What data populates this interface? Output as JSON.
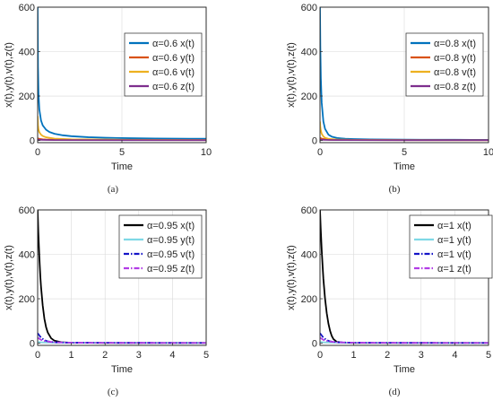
{
  "chart_data": [
    {
      "type": "line",
      "panel": "a",
      "caption": "(a)",
      "xlabel": "Time",
      "ylabel": "x(t),y(t),v(t),z(t)",
      "xlim": [
        0,
        10
      ],
      "ylim": [
        -10,
        600
      ],
      "xticks": [
        0,
        5,
        10
      ],
      "yticks": [
        0,
        200,
        400,
        600
      ],
      "grid": true,
      "legend_position": "top-right",
      "series": [
        {
          "name": "α=0.6 x(t)",
          "color": "#0072BD",
          "dash": "solid",
          "x": [
            0,
            0.02,
            0.05,
            0.1,
            0.2,
            0.3,
            0.5,
            0.7,
            1,
            1.5,
            2,
            3,
            4,
            5,
            6,
            7,
            8,
            9,
            10
          ],
          "y": [
            600,
            330,
            210,
            140,
            90,
            68,
            48,
            38,
            30,
            23,
            19,
            14.5,
            12,
            10.5,
            9.5,
            8.8,
            8.3,
            7.8,
            7.5
          ]
        },
        {
          "name": "α=0.6 y(t)",
          "color": "#D95319",
          "dash": "solid",
          "x": [
            0,
            0.1,
            0.3,
            0.5,
            1,
            2,
            5,
            10
          ],
          "y": [
            10,
            7,
            5,
            4,
            3,
            2,
            1.5,
            1
          ]
        },
        {
          "name": "α=0.6 v(t)",
          "color": "#EDB120",
          "dash": "solid",
          "x": [
            0,
            0.02,
            0.05,
            0.1,
            0.2,
            0.3,
            0.5,
            1,
            2,
            5,
            10
          ],
          "y": [
            110,
            70,
            50,
            37,
            26,
            20,
            14,
            8,
            5,
            3,
            2
          ]
        },
        {
          "name": "α=0.6 z(t)",
          "color": "#7E2F8E",
          "dash": "solid",
          "x": [
            0,
            0.5,
            1,
            5,
            10
          ],
          "y": [
            3,
            2,
            1.5,
            1,
            1
          ]
        }
      ]
    },
    {
      "type": "line",
      "panel": "b",
      "caption": "(b)",
      "xlabel": "Time",
      "ylabel": "x(t),y(t),v(t),z(t)",
      "xlim": [
        0,
        10
      ],
      "ylim": [
        -10,
        600
      ],
      "xticks": [
        0,
        5,
        10
      ],
      "yticks": [
        0,
        200,
        400,
        600
      ],
      "grid": true,
      "legend_position": "top-right",
      "series": [
        {
          "name": "α=0.8 x(t)",
          "color": "#0072BD",
          "dash": "solid",
          "x": [
            0,
            0.02,
            0.05,
            0.1,
            0.2,
            0.3,
            0.5,
            0.7,
            1,
            1.5,
            2,
            3,
            4,
            5,
            6,
            7,
            8,
            9,
            10
          ],
          "y": [
            600,
            420,
            280,
            170,
            85,
            52,
            26,
            17,
            11,
            7.5,
            6,
            4.5,
            4,
            3.5,
            3.2,
            3,
            2.8,
            2.6,
            2.5
          ]
        },
        {
          "name": "α=0.8 y(t)",
          "color": "#D95319",
          "dash": "solid",
          "x": [
            0,
            0.1,
            0.3,
            0.5,
            1,
            2,
            5,
            10
          ],
          "y": [
            12,
            8,
            5,
            3,
            2,
            1.5,
            1,
            1
          ]
        },
        {
          "name": "α=0.8 v(t)",
          "color": "#EDB120",
          "dash": "solid",
          "x": [
            0,
            0.02,
            0.05,
            0.1,
            0.2,
            0.3,
            0.5,
            1,
            2,
            5,
            10
          ],
          "y": [
            85,
            60,
            45,
            30,
            18,
            12,
            7,
            4,
            2.5,
            1.5,
            1
          ]
        },
        {
          "name": "α=0.8 z(t)",
          "color": "#7E2F8E",
          "dash": "solid",
          "x": [
            0,
            0.5,
            1,
            5,
            10
          ],
          "y": [
            3,
            2,
            1.5,
            1,
            1
          ]
        }
      ]
    },
    {
      "type": "line",
      "panel": "c",
      "caption": "(c)",
      "xlabel": "Time",
      "ylabel": "x(t),y(t),v(t),z(t)",
      "xlim": [
        0,
        5
      ],
      "ylim": [
        -10,
        600
      ],
      "xticks": [
        0,
        1,
        2,
        3,
        4,
        5
      ],
      "yticks": [
        0,
        200,
        400,
        600
      ],
      "grid": true,
      "legend_position": "top-right",
      "series": [
        {
          "name": "α=0.95 x(t)",
          "color": "#000000",
          "dash": "solid",
          "x": [
            0,
            0.02,
            0.05,
            0.08,
            0.1,
            0.15,
            0.2,
            0.25,
            0.3,
            0.4,
            0.5,
            0.7,
            1,
            2,
            3,
            4,
            5
          ],
          "y": [
            600,
            500,
            390,
            300,
            255,
            170,
            110,
            72,
            48,
            22,
            11,
            4,
            2,
            1,
            1,
            1,
            1
          ]
        },
        {
          "name": "α=0.95 y(t)",
          "color": "#7FD8E6",
          "dash": "solid",
          "x": [
            0,
            0.1,
            0.3,
            0.5,
            1,
            2,
            5
          ],
          "y": [
            5,
            4,
            3,
            2.5,
            2,
            1.5,
            1
          ]
        },
        {
          "name": "α=0.95 v(t)",
          "color": "#1515C8",
          "dash": "dashdot",
          "x": [
            0,
            0.05,
            0.1,
            0.2,
            0.3,
            0.5,
            1,
            2,
            5
          ],
          "y": [
            45,
            35,
            25,
            14,
            8,
            4,
            2,
            1.5,
            1
          ]
        },
        {
          "name": "α=0.95 z(t)",
          "color": "#B23CE6",
          "dash": "dashdot",
          "x": [
            0,
            0.05,
            0.1,
            0.2,
            0.3,
            0.5,
            1,
            2,
            5
          ],
          "y": [
            25,
            20,
            15,
            10,
            7,
            4,
            2,
            1.5,
            1
          ]
        }
      ]
    },
    {
      "type": "line",
      "panel": "d",
      "caption": "(d)",
      "xlabel": "Time",
      "ylabel": "x(t),y(t),v(t),z(t)",
      "xlim": [
        0,
        5
      ],
      "ylim": [
        -10,
        600
      ],
      "xticks": [
        0,
        1,
        2,
        3,
        4,
        5
      ],
      "yticks": [
        0,
        200,
        400,
        600
      ],
      "grid": true,
      "legend_position": "top-right",
      "series": [
        {
          "name": "α=1 x(t)",
          "color": "#000000",
          "dash": "solid",
          "x": [
            0,
            0.02,
            0.05,
            0.08,
            0.1,
            0.15,
            0.2,
            0.25,
            0.3,
            0.35,
            0.4,
            0.5,
            0.7,
            1,
            2,
            3,
            4,
            5
          ],
          "y": [
            600,
            520,
            420,
            340,
            290,
            200,
            135,
            88,
            55,
            32,
            18,
            6,
            2,
            1,
            1,
            1,
            1,
            1
          ]
        },
        {
          "name": "α=1 y(t)",
          "color": "#7FD8E6",
          "dash": "solid",
          "x": [
            0,
            0.1,
            0.3,
            0.5,
            1,
            2,
            5
          ],
          "y": [
            5,
            4,
            3,
            2.5,
            2,
            1.5,
            1
          ]
        },
        {
          "name": "α=1 v(t)",
          "color": "#1515C8",
          "dash": "dashdot",
          "x": [
            0,
            0.05,
            0.1,
            0.2,
            0.3,
            0.5,
            1,
            2,
            5
          ],
          "y": [
            45,
            35,
            25,
            14,
            8,
            4,
            2,
            1.5,
            1
          ]
        },
        {
          "name": "α=1 z(t)",
          "color": "#B23CE6",
          "dash": "dashdot",
          "x": [
            0,
            0.05,
            0.1,
            0.2,
            0.3,
            0.5,
            1,
            2,
            5
          ],
          "y": [
            25,
            20,
            15,
            10,
            7,
            4,
            2,
            1.5,
            1
          ]
        }
      ]
    }
  ]
}
